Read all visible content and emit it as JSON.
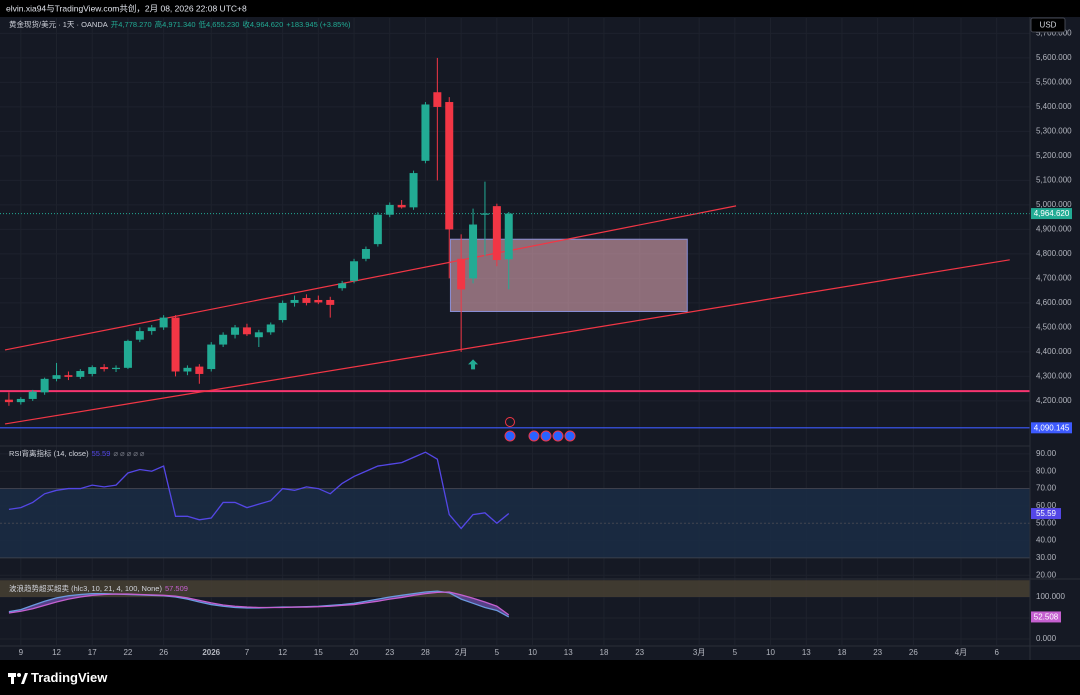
{
  "header": {
    "attribution": "elvin.xia94与TradingView.com共创，2月 08, 2026 22:08 UTC+8"
  },
  "footer": {
    "brand": "TradingView"
  },
  "chart_data": [
    {
      "type": "candlestick",
      "title": "黄金现货/美元 · 1天 · OANDA",
      "legend_values": [
        "开4,778.270",
        "高4,971.340",
        "低4,655.230",
        "收4,964.620",
        "+183.945 (+3.85%)"
      ],
      "currency": "USD",
      "up_color": "#22ab94",
      "down_color": "#f23645",
      "x": [
        0,
        1,
        2,
        3,
        4,
        5,
        6,
        7,
        8,
        9,
        10,
        11,
        12,
        13,
        14,
        15,
        16,
        17,
        18,
        19,
        20,
        21,
        22,
        23,
        24,
        25,
        26,
        27,
        28,
        29,
        30,
        31,
        32,
        33,
        34,
        35,
        36,
        37,
        38,
        39,
        40,
        41,
        42
      ],
      "open": [
        4205,
        4195,
        4208,
        4235,
        4290,
        4305,
        4298,
        4310,
        4338,
        4330,
        4335,
        4450,
        4485,
        4500,
        4540,
        4320,
        4340,
        4330,
        4430,
        4470,
        4500,
        4460,
        4480,
        4530,
        4600,
        4620,
        4612,
        4612,
        4660,
        4690,
        4780,
        4840,
        4960,
        5000,
        4990,
        5180,
        5460,
        5420,
        4780,
        4700,
        4960,
        4995,
        4778.27
      ],
      "high": [
        4235,
        4215,
        4245,
        4295,
        4355,
        4320,
        4330,
        4345,
        4350,
        4345,
        4450,
        4500,
        4510,
        4550,
        4550,
        4345,
        4350,
        4440,
        4480,
        4510,
        4515,
        4490,
        4520,
        4610,
        4630,
        4635,
        4630,
        4625,
        4690,
        4780,
        4830,
        4970,
        5010,
        5020,
        5140,
        5420,
        5600,
        5440,
        4880,
        4985,
        5095,
        5005,
        4971.34
      ],
      "low": [
        4180,
        4185,
        4200,
        4225,
        4280,
        4285,
        4290,
        4300,
        4320,
        4318,
        4330,
        4440,
        4470,
        4490,
        4300,
        4305,
        4270,
        4320,
        4420,
        4455,
        4465,
        4420,
        4470,
        4520,
        4585,
        4590,
        4595,
        4540,
        4650,
        4680,
        4770,
        4830,
        4950,
        4985,
        4980,
        5170,
        5100,
        4700,
        4400,
        4680,
        4790,
        4750,
        4655.23
      ],
      "close": [
        4195,
        4208,
        4238,
        4290,
        4305,
        4298,
        4322,
        4338,
        4330,
        4335,
        4445,
        4485,
        4500,
        4540,
        4320,
        4335,
        4310,
        4430,
        4470,
        4500,
        4472,
        4480,
        4512,
        4600,
        4612,
        4600,
        4602,
        4592,
        4680,
        4770,
        4820,
        4960,
        5000,
        4990,
        5130,
        5410,
        5400,
        4900,
        4655,
        4920,
        4965,
        4775,
        4964.62
      ],
      "xlim": [
        -0.75,
        85.8
      ],
      "xticks": [
        {
          "value": 1,
          "label": "9"
        },
        {
          "value": 4,
          "label": "12"
        },
        {
          "value": 7,
          "label": "17"
        },
        {
          "value": 10,
          "label": "22"
        },
        {
          "value": 13,
          "label": "26"
        },
        {
          "value": 17,
          "label": "2026"
        },
        {
          "value": 20,
          "label": "7"
        },
        {
          "value": 23,
          "label": "12"
        },
        {
          "value": 26,
          "label": "15"
        },
        {
          "value": 29,
          "label": "20"
        },
        {
          "value": 32,
          "label": "23"
        },
        {
          "value": 35,
          "label": "28"
        },
        {
          "value": 38,
          "label": "2月"
        },
        {
          "value": 41,
          "label": "5"
        },
        {
          "value": 44,
          "label": "10"
        },
        {
          "value": 47,
          "label": "13"
        },
        {
          "value": 50,
          "label": "18"
        },
        {
          "value": 53,
          "label": "23"
        },
        {
          "value": 58,
          "label": "3月"
        },
        {
          "value": 61,
          "label": "5"
        },
        {
          "value": 64,
          "label": "10"
        },
        {
          "value": 67,
          "label": "13"
        },
        {
          "value": 70,
          "label": "18"
        },
        {
          "value": 73,
          "label": "23"
        },
        {
          "value": 76,
          "label": "26"
        },
        {
          "value": 80,
          "label": "4月"
        },
        {
          "value": 83,
          "label": "6"
        }
      ],
      "ylim": [
        4020,
        5763
      ],
      "yticks": [
        {
          "value": 4200,
          "label": "4,200.000"
        },
        {
          "value": 4300,
          "label": "4,300.000"
        },
        {
          "value": 4400,
          "label": "4,400.000"
        },
        {
          "value": 4500,
          "label": "4,500.000"
        },
        {
          "value": 4600,
          "label": "4,600.000"
        },
        {
          "value": 4700,
          "label": "4,700.000"
        },
        {
          "value": 4800,
          "label": "4,800.000"
        },
        {
          "value": 4900,
          "label": "4,900.000"
        },
        {
          "value": 5000,
          "label": "5,000.000"
        },
        {
          "value": 5100,
          "label": "5,100.000"
        },
        {
          "value": 5200,
          "label": "5,200.000"
        },
        {
          "value": 5300,
          "label": "5,300.000"
        },
        {
          "value": 5400,
          "label": "5,400.000"
        },
        {
          "value": 5500,
          "label": "5,500.000"
        },
        {
          "value": 5600,
          "label": "5,600.000"
        },
        {
          "value": 5700,
          "label": "5,700.000"
        }
      ],
      "grid": true,
      "current_price": {
        "value": 4964.62,
        "label": "4,964.620",
        "color": "#22ab94"
      },
      "levels": [
        {
          "value": 4240,
          "color": "#f7356f"
        },
        {
          "value": 4090.145,
          "label": "4,090.145",
          "color": "#3d5afe"
        }
      ],
      "trend_lines": [
        {
          "x": [
            -0.33,
            61.1
          ],
          "y": [
            4408,
            4996
          ],
          "color": "#f23645"
        },
        {
          "x": [
            -0.33,
            84.1
          ],
          "y": [
            4106,
            4776
          ],
          "color": "#f23645"
        }
      ],
      "zone": {
        "x": [
          37.1,
          57.0
        ],
        "y": [
          4565,
          4860
        ],
        "color": "#f0b3c0"
      },
      "signals": [
        {
          "x": 39,
          "y": 4345,
          "color": "#22ab94"
        }
      ]
    },
    {
      "type": "line",
      "title": "RSI背离指标 (14, close)",
      "symbols": "⌀ ⌀ ⌀ ⌀ ⌀",
      "color": "#5447e6",
      "values": [
        58,
        59,
        62,
        67,
        69,
        70,
        70,
        72,
        71,
        72,
        79,
        81,
        80,
        83,
        54,
        54,
        52,
        53,
        62,
        62,
        59,
        61,
        63,
        70,
        69,
        71,
        70,
        67,
        73,
        77,
        80,
        83,
        84,
        85,
        88,
        91,
        87,
        55,
        47,
        55,
        56,
        50,
        55.59
      ],
      "ylim": [
        18.4,
        94
      ],
      "yticks": [
        {
          "value": 20,
          "label": "20.00"
        },
        {
          "value": 30,
          "label": "30.00"
        },
        {
          "value": 40,
          "label": "40.00"
        },
        {
          "value": 50,
          "label": "50.00"
        },
        {
          "value": 60,
          "label": "60.00"
        },
        {
          "value": 70,
          "label": "70.00"
        },
        {
          "value": 80,
          "label": "80.00"
        },
        {
          "value": 90,
          "label": "90.00"
        }
      ],
      "band": [
        30,
        70
      ],
      "midline": 50
    },
    {
      "type": "line",
      "title": "波浪趋势超买超卖 (hlc3, 10, 21, 4, 100, None)",
      "series": [
        {
          "color": "#6b9be0",
          "values": [
            65,
            70,
            80,
            90,
            98,
            103,
            106,
            108,
            108,
            107,
            106,
            105,
            104,
            103,
            100,
            95,
            88,
            82,
            78,
            75,
            74,
            74,
            75,
            76,
            76,
            77,
            78,
            80,
            82,
            85,
            90,
            95,
            100,
            104,
            108,
            112,
            114,
            110,
            95,
            85,
            75,
            68,
            52.508
          ]
        },
        {
          "color": "#c560d0",
          "values": [
            62,
            66,
            72,
            80,
            88,
            95,
            100,
            104,
            106,
            107,
            107,
            106,
            105,
            104,
            102,
            98,
            92,
            86,
            81,
            78,
            76,
            75,
            75,
            75,
            76,
            76,
            77,
            78,
            80,
            82,
            86,
            90,
            95,
            99,
            104,
            108,
            111,
            112,
            105,
            97,
            88,
            78,
            57.509
          ]
        }
      ],
      "ylim": [
        -14.3,
        140.5
      ],
      "yticks": [
        {
          "value": 0,
          "label": "0.000"
        },
        {
          "value": 50,
          "label": "50.000"
        },
        {
          "value": 100,
          "label": "100.000"
        }
      ],
      "band": [
        100,
        140
      ]
    }
  ]
}
